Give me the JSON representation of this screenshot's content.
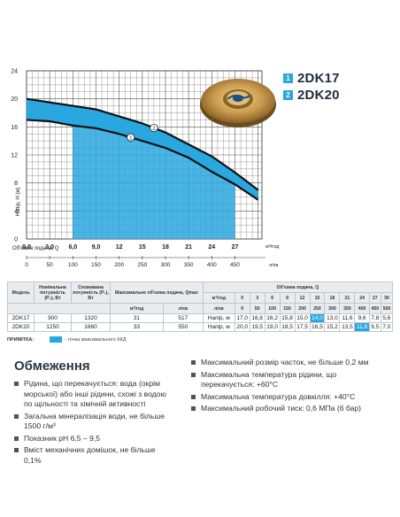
{
  "legend": [
    {
      "num": "1",
      "model": "2DK17",
      "color": "#2aa7df"
    },
    {
      "num": "2",
      "model": "2DK20",
      "color": "#2aa7df"
    }
  ],
  "chart_data": {
    "type": "line",
    "y_ticks": [
      "0",
      "4",
      "8",
      "12",
      "16",
      "20",
      "24"
    ],
    "ylim": [
      0,
      24
    ],
    "ylabel": "Напір, Н (м)",
    "x_ticks_m3h": [
      "0,0",
      "3,0",
      "6,0",
      "9,0",
      "12",
      "15",
      "18",
      "21",
      "24",
      "27"
    ],
    "x_unit_m3h": "м³/год",
    "x_ticks_lmin": [
      "0",
      "50",
      "100",
      "150",
      "200",
      "250",
      "300",
      "350",
      "400",
      "450"
    ],
    "x_unit_lmin": "л/хв",
    "xlabel": "Об'ємна подача, Q",
    "xlim_m3h": [
      0,
      30.5
    ],
    "efficiency_zone_m3h": [
      6,
      27
    ],
    "series": [
      {
        "label": "1",
        "x": [
          0,
          3,
          6,
          9,
          12,
          15,
          18,
          21,
          24,
          27,
          30
        ],
        "y": [
          17.0,
          16.8,
          16.2,
          15.8,
          15.0,
          14.0,
          13.0,
          11.6,
          9.6,
          7.8,
          5.6
        ]
      },
      {
        "label": "2",
        "x": [
          0,
          3,
          6,
          9,
          12,
          15,
          18,
          21,
          24,
          27,
          30
        ],
        "y": [
          20.0,
          19.5,
          19.0,
          18.5,
          17.5,
          16.5,
          15.2,
          13.5,
          11.8,
          9.5,
          7.0
        ]
      }
    ]
  },
  "table": {
    "headers": {
      "model": "Модель",
      "p2": "Номінальна потужність (Р₂), Вт",
      "p1": "Споживана потужність (Р₁), Вт",
      "qmax": "Максимальне об'ємна подача, Qmax",
      "flow": "Об'ємна подача, Q",
      "unit_m3h": "м³/год",
      "unit_lmin": "л/хв",
      "head_label": "Напір, м"
    },
    "flow_m3h": [
      "0",
      "3",
      "6",
      "9",
      "12",
      "15",
      "18",
      "21",
      "24",
      "27",
      "30"
    ],
    "flow_lmin": [
      "0",
      "50",
      "100",
      "150",
      "200",
      "250",
      "300",
      "350",
      "400",
      "450",
      "500"
    ],
    "rows": [
      {
        "model": "2DK17",
        "p2": "900",
        "p1": "1320",
        "qmax_m3h": "31",
        "qmax_lmin": "517",
        "heads": [
          "17,0",
          "16,8",
          "16,2",
          "15,8",
          "15,0",
          "14,0",
          "13,0",
          "11,6",
          "9,6",
          "7,8",
          "5,6"
        ],
        "hl": 5
      },
      {
        "model": "2DK20",
        "p2": "1250",
        "p1": "1660",
        "qmax_m3h": "33",
        "qmax_lmin": "550",
        "heads": [
          "20,0",
          "19,5",
          "19,0",
          "18,5",
          "17,5",
          "16,5",
          "15,2",
          "13,5",
          "11,8",
          "9,5",
          "7,0"
        ],
        "hl": 8
      }
    ]
  },
  "note": {
    "label": "ПРИМІТКА:",
    "text": "- точка максимального ККД"
  },
  "restrictions": {
    "title": "Обмеження",
    "left": [
      "Рідина, що перекачується: вода (окрім морської) або інші рідини, схожі з водою по щільності та хімічній активності",
      "Загальна мінералізація води, не більше 1500 г/м³",
      "Показник рН 6,5 – 9,5",
      "Вміст механічних домішок, не більше 0,1%"
    ],
    "right": [
      "Максимальний розмір часток, не більше 0,2 мм",
      "Максимальна температура рідини, що перекачується: +60°С",
      "Максимальна температура довкілля: +40°С",
      "Максимальний робочий тиск: 0,6 МПа (6 бар)"
    ]
  }
}
